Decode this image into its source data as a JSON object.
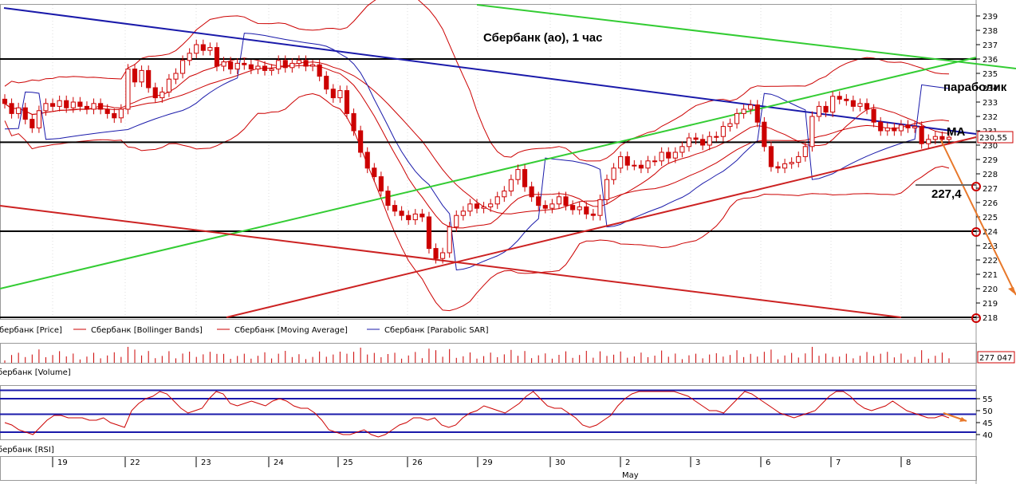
{
  "chart_data": {
    "type": "candlestick",
    "title": "Сбербанк (ао),  1 час",
    "price_axis": {
      "ylim": [
        218,
        239.5
      ],
      "ticks": [
        218,
        219,
        220,
        221,
        222,
        223,
        224,
        225,
        226,
        227,
        228,
        229,
        230,
        231,
        232,
        233,
        234,
        235,
        236,
        237,
        238,
        239
      ]
    },
    "last_price_label": "230,55",
    "volume_label": "277 047",
    "rsi_axis": {
      "ylim": [
        38,
        60
      ],
      "ticks": [
        40,
        45,
        50,
        55
      ],
      "levels": [
        41,
        48.5,
        55,
        58.5
      ]
    },
    "legend_price": [
      {
        "name": "Сбербанк [Price]",
        "color": "#cc0000"
      },
      {
        "name": "Сбербанк [Bollinger Bands]",
        "color": "#cc0000"
      },
      {
        "name": "Сбербанк [Moving Average]",
        "color": "#cc0000"
      },
      {
        "name": "Сбербанк [Parabolic SAR]",
        "color": "#1a1aaa"
      }
    ],
    "legend_volume": "Сбербанк [Volume]",
    "legend_rsi": "Сбербанк [RSI]",
    "dates": [
      "19",
      "22",
      "23",
      "24",
      "25",
      "26",
      "29",
      "30",
      "2",
      "3",
      "6",
      "7",
      "8"
    ],
    "month_label": "May",
    "annotations": {
      "target": "227,4",
      "ma": "MA",
      "parabolic": "параболик"
    },
    "colors": {
      "up": "#cc0000",
      "down": "#cc0000",
      "sar": "#1a1aaa",
      "support": "#000000",
      "trend_green": "#33cc33",
      "trend_red": "#cc2222",
      "trend_blue": "#1a1aaa",
      "forecast": "#e8782a"
    },
    "horizontal_levels": [
      236,
      230.2,
      224,
      218
    ],
    "close": [
      232.9,
      232.2,
      232.6,
      231.8,
      231.2,
      232.4,
      232.9,
      232.7,
      233.1,
      232.6,
      233.0,
      232.7,
      232.5,
      232.9,
      232.5,
      232.2,
      231.9,
      232.5,
      235.3,
      234.4,
      235.2,
      234.0,
      233.3,
      233.7,
      234.6,
      235.0,
      235.9,
      236.4,
      237.0,
      236.6,
      236.8,
      235.5,
      235.8,
      235.3,
      235.7,
      235.6,
      235.3,
      235.5,
      235.2,
      235.3,
      235.9,
      235.4,
      235.7,
      235.9,
      235.5,
      235.6,
      234.8,
      233.9,
      233.3,
      233.8,
      232.2,
      231.0,
      229.5,
      228.4,
      227.8,
      226.8,
      225.8,
      225.4,
      225.1,
      224.8,
      225.2,
      225.0,
      222.8,
      222.1,
      222.5,
      224.3,
      225.1,
      225.4,
      225.9,
      225.6,
      225.7,
      225.9,
      226.4,
      226.8,
      227.6,
      228.3,
      227.1,
      226.4,
      225.8,
      225.6,
      225.9,
      226.4,
      225.8,
      225.5,
      225.7,
      225.2,
      225.1,
      226.2,
      227.6,
      228.4,
      229.2,
      228.6,
      228.6,
      228.4,
      228.9,
      228.9,
      229.5,
      229.1,
      229.5,
      229.9,
      230.5,
      230.4,
      230.0,
      230.6,
      230.6,
      231.3,
      231.5,
      232.2,
      232.5,
      232.8,
      231.6,
      229.9,
      228.5,
      228.4,
      228.7,
      228.8,
      229.2,
      229.9,
      232.0,
      232.7,
      232.3,
      233.4,
      233.2,
      233.1,
      232.7,
      232.9,
      232.5,
      231.6,
      231.0,
      231.2,
      231.0,
      231.4,
      231.2,
      231.3,
      230.1,
      230.4,
      230.6,
      230.4,
      230.55
    ],
    "rsi": [
      45,
      44,
      42,
      41,
      40,
      43,
      46,
      48,
      48,
      47,
      47,
      47,
      46,
      46,
      47,
      45,
      44,
      43,
      50,
      53,
      55,
      56,
      58,
      57,
      54,
      51,
      49,
      50,
      51,
      55,
      58,
      57,
      53,
      52,
      53,
      54,
      53,
      52,
      54,
      55,
      54,
      52,
      51,
      51,
      49,
      46,
      42,
      41,
      40,
      40,
      41,
      42,
      40,
      39,
      40,
      42,
      44,
      45,
      47,
      47,
      46,
      47,
      44,
      43,
      44,
      47,
      49,
      50,
      52,
      51,
      50,
      49,
      51,
      53,
      56,
      58,
      55,
      52,
      51,
      51,
      49,
      47,
      44,
      43,
      44,
      46,
      48,
      52,
      55,
      57,
      58,
      58,
      58,
      58,
      58,
      58,
      57,
      56,
      54,
      52,
      50,
      50,
      49,
      52,
      55,
      58,
      57,
      55,
      53,
      51,
      49,
      48,
      47,
      48,
      49,
      50,
      53,
      56,
      58,
      58,
      56,
      53,
      51,
      50,
      51,
      52,
      54,
      52,
      50,
      49,
      48,
      47,
      47,
      48,
      47
    ]
  }
}
